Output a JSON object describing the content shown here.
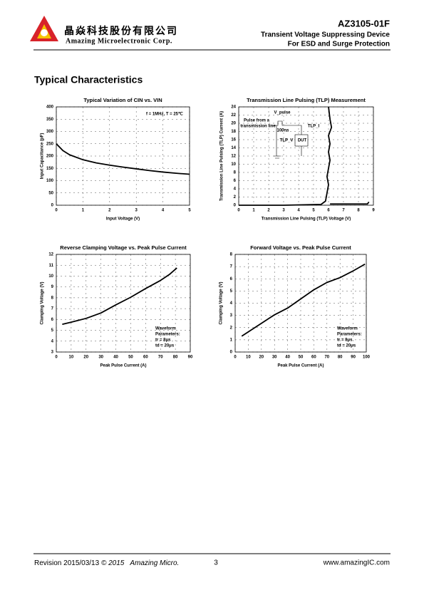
{
  "header": {
    "company_cn": "晶焱科技股份有限公司",
    "company_en": "Amazing Microelectronic Corp.",
    "part": "AZ3105-01F",
    "line1": "Transient Voltage Suppressing Device",
    "line2": "For ESD and Surge Protection"
  },
  "section_title": "Typical Characteristics",
  "chart_data": [
    {
      "type": "line",
      "title": "Typical Variation of CIN vs. VIN",
      "x_label": "Input Voltage (V)",
      "y_label": "Input Capacitance (pF)",
      "x": [
        0,
        0.25,
        0.5,
        1,
        1.5,
        2,
        2.5,
        3,
        3.5,
        4,
        4.5,
        5
      ],
      "values": [
        250,
        222,
        205,
        185,
        172,
        163,
        155,
        148,
        141,
        135,
        130,
        126
      ],
      "color": "#000000",
      "xlim": [
        0,
        5
      ],
      "xticks": [
        0,
        1,
        2,
        3,
        4,
        5
      ],
      "ylim": [
        0,
        400
      ],
      "yticks": [
        0,
        50,
        100,
        150,
        200,
        250,
        300,
        350,
        400
      ],
      "grid": true,
      "annotations": [
        "f = 1MHz, T = 25℃"
      ]
    },
    {
      "type": "line",
      "title": "Transmission Line Pulsing (TLP) Measurement",
      "x_label": "Transmission Line Pulsing (TLP) Voltage (V)",
      "y_label": "Transmission Line Pulsing (TLP) Current (A)",
      "x": [
        0,
        3,
        5.5,
        5.8,
        5.9,
        6.0,
        5.9,
        6.0,
        6.1,
        6.0,
        6.1,
        6.0,
        6.2,
        6.1,
        6.0,
        null,
        6.1,
        8.6,
        8.7
      ],
      "values": [
        0,
        0,
        0.2,
        1,
        3,
        5,
        7,
        9,
        11,
        13,
        15,
        17,
        19,
        21,
        24,
        null,
        0.3,
        0.3,
        0.8
      ],
      "color": "#000000",
      "xlim": [
        0,
        9
      ],
      "xticks": [
        0,
        1,
        2,
        3,
        4,
        5,
        6,
        7,
        8,
        9
      ],
      "ylim": [
        0,
        24
      ],
      "yticks": [
        0,
        2,
        4,
        6,
        8,
        10,
        12,
        14,
        16,
        18,
        20,
        22,
        24
      ],
      "grid": true,
      "annotations": [
        "V_pulse",
        "Pulse from a",
        "transmission line",
        "100ns",
        "TLP_I",
        "TLP_V",
        "DUT"
      ]
    },
    {
      "type": "line",
      "title": "Reverse Clamping Voltage vs. Peak Pulse Current",
      "x_label": "Peak Pulse Current (A)",
      "y_label": "Clamping Voltage (V)",
      "x": [
        4,
        10,
        20,
        30,
        40,
        50,
        60,
        70,
        76,
        81
      ],
      "values": [
        5.55,
        5.75,
        6.1,
        6.6,
        7.35,
        8.05,
        8.85,
        9.6,
        10.15,
        10.75
      ],
      "color": "#000000",
      "xlim": [
        0,
        90
      ],
      "xticks": [
        0,
        10,
        20,
        30,
        40,
        50,
        60,
        70,
        80,
        90
      ],
      "ylim": [
        3,
        12
      ],
      "yticks": [
        3,
        4,
        5,
        6,
        7,
        8,
        9,
        10,
        11,
        12
      ],
      "grid": true,
      "annotations": [
        "Waveform",
        "Parameters:",
        "tr = 8μs",
        "td = 20μs"
      ]
    },
    {
      "type": "line",
      "title": "Forward Voltage vs. Peak Pulse Current",
      "x_label": "Peak Pulse Current (A)",
      "y_label": "Clamping Voltage (V)",
      "x": [
        5,
        10,
        20,
        30,
        40,
        50,
        60,
        70,
        80,
        90,
        99
      ],
      "values": [
        1.3,
        1.65,
        2.35,
        3.05,
        3.6,
        4.35,
        5.1,
        5.7,
        6.1,
        6.65,
        7.2
      ],
      "color": "#000000",
      "xlim": [
        0,
        100
      ],
      "xticks": [
        0,
        10,
        20,
        30,
        40,
        50,
        60,
        70,
        80,
        90,
        100
      ],
      "ylim": [
        0,
        8
      ],
      "yticks": [
        0,
        1,
        2,
        3,
        4,
        5,
        6,
        7,
        8
      ],
      "grid": true,
      "annotations": [
        "Waveform",
        "Parameters:",
        "tr = 8μs",
        "td = 20μs"
      ]
    }
  ],
  "footer": {
    "revision": "Revision 2015/03/13",
    "copyright": "© 2015",
    "company": "Amazing Micro.",
    "page": "3",
    "website": "www.amazingIC.com"
  }
}
